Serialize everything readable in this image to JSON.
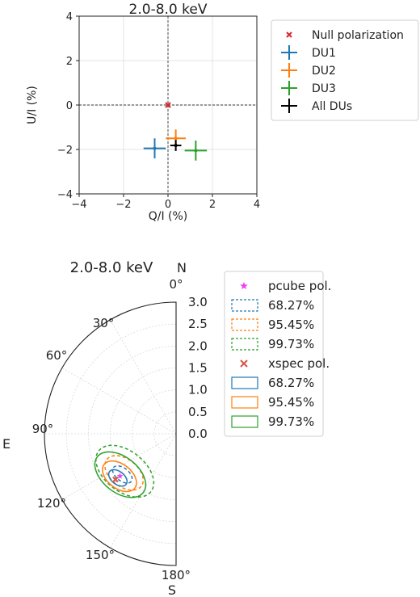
{
  "chart_data": [
    {
      "type": "scatter",
      "title": "2.0-8.0 keV",
      "xlabel": "Q/I (%)",
      "ylabel": "U/I (%)",
      "xlim": [
        -4,
        4
      ],
      "ylim": [
        -4,
        4
      ],
      "xticks": [
        "−4",
        "−2",
        "0",
        "2",
        "4"
      ],
      "yticks": [
        "4",
        "2",
        "0",
        "−2",
        "−4"
      ],
      "grid": true,
      "legend_position": "right",
      "series": [
        {
          "name": "Null polarization",
          "marker": "x",
          "color": "#d62728",
          "x": 0,
          "y": 0
        },
        {
          "name": "DU1",
          "color": "#1f77b4",
          "x": -0.6,
          "y": -1.95,
          "xerr": 0.5,
          "yerr": 0.45
        },
        {
          "name": "DU2",
          "color": "#ff7f0e",
          "x": 0.35,
          "y": -1.5,
          "xerr": 0.45,
          "yerr": 0.4
        },
        {
          "name": "DU3",
          "color": "#2ca02c",
          "x": 1.25,
          "y": -2.05,
          "xerr": 0.5,
          "yerr": 0.45
        },
        {
          "name": "All DUs",
          "color": "#000000",
          "x": 0.35,
          "y": -1.82,
          "xerr": 0.25,
          "yerr": 0.25
        }
      ]
    },
    {
      "type": "polar",
      "title": "2.0-8.0 keV",
      "north_label": "N",
      "south_label": "S",
      "east_label": "E",
      "angle_ticks": [
        "0°",
        "30°",
        "60°",
        "90°",
        "120°",
        "150°",
        "180°"
      ],
      "radial_ticks": [
        "3.0",
        "2.5",
        "2.0",
        "1.5",
        "1.0",
        "0.5",
        "0.0"
      ],
      "rlim": [
        0,
        3.0
      ],
      "grid": true,
      "legend_position": "right",
      "pcube_point": {
        "angle_deg": 127,
        "radius": 1.6
      },
      "xspec_point": {
        "angle_deg": 127,
        "radius": 1.73
      },
      "series": [
        {
          "name": "pcube pol.",
          "marker": "star",
          "color": "#ee44ee"
        },
        {
          "name": "68.27%",
          "style": "dashed",
          "color": "#1f77b4"
        },
        {
          "name": "95.45%",
          "style": "dashed",
          "color": "#ff7f0e"
        },
        {
          "name": "99.73%",
          "style": "dashed",
          "color": "#2ca02c"
        },
        {
          "name": "xspec pol.",
          "marker": "x",
          "color": "#d9594a"
        },
        {
          "name": "68.27%",
          "style": "solid",
          "color": "#1f77b4"
        },
        {
          "name": "95.45%",
          "style": "solid",
          "color": "#ff7f0e"
        },
        {
          "name": "99.73%",
          "style": "solid",
          "color": "#2ca02c"
        }
      ]
    }
  ]
}
